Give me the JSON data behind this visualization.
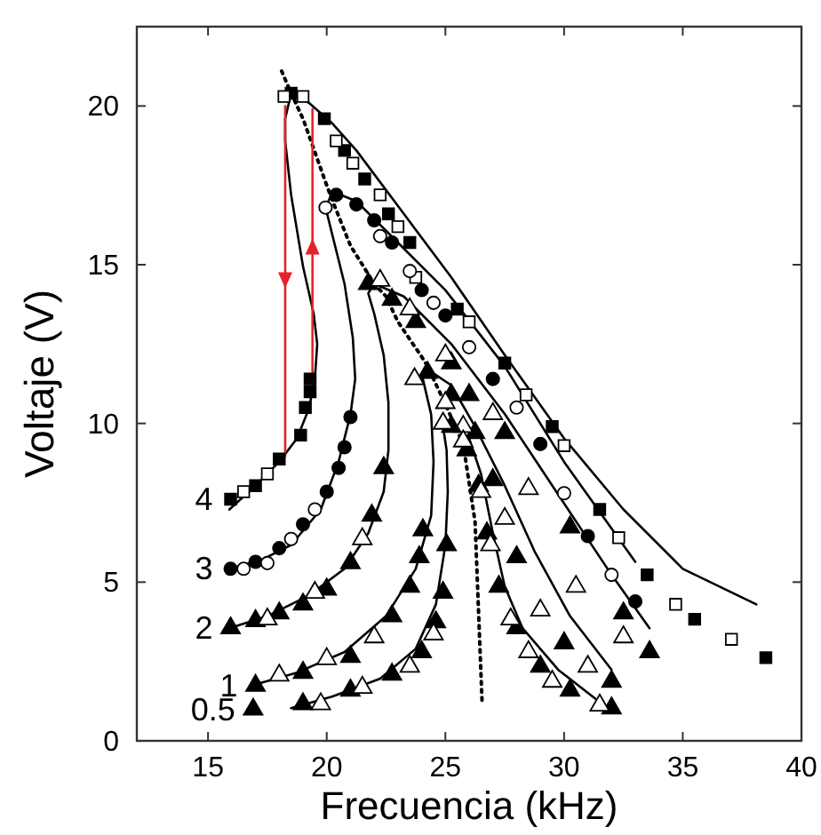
{
  "chart_data": {
    "type": "scatter",
    "xlabel": "Frecuencia (kHz)",
    "ylabel": "Voltaje (V)",
    "xlim": [
      12,
      40
    ],
    "ylim": [
      0,
      22.5
    ],
    "xticks": [
      15,
      20,
      25,
      30,
      35,
      40
    ],
    "yticks": [
      0,
      5,
      10,
      15,
      20
    ],
    "grid": false,
    "series": [
      {
        "type": "line",
        "color": "#000000",
        "marker": "none",
        "line_style": "solid",
        "x": [
          15.9,
          17,
          18,
          18.75,
          19.25,
          19.5,
          19.6,
          19.45,
          19,
          18.5,
          18.25,
          18.25,
          18.5,
          19.25,
          20.25,
          21.25,
          23.25,
          25.25,
          27.5,
          30,
          32.5,
          35,
          38.1
        ],
        "values": [
          7.29,
          8.04,
          8.79,
          9.53,
          10.47,
          11.4,
          12.5,
          13.46,
          14.95,
          17.2,
          18.9,
          19.6,
          20.4,
          20.1,
          19.44,
          18.6,
          16.6,
          14.6,
          12.15,
          9.53,
          7.29,
          5.42,
          4.3
        ]
      },
      {
        "type": "line",
        "color": "#000000",
        "marker": "none",
        "line_style": "solid",
        "x": [
          15.9,
          17.25,
          18.5,
          19.75,
          20.5,
          21,
          21.2,
          21.1,
          20.75,
          20.25,
          19.95,
          20.25,
          21.25,
          22.5,
          25,
          27.5,
          30,
          33
        ],
        "values": [
          5.42,
          5.7,
          6.17,
          7.29,
          8.79,
          10.28,
          11.4,
          12.7,
          14.4,
          15.9,
          16.8,
          17.3,
          17,
          16.07,
          14.2,
          11.8,
          8.79,
          5.64
        ]
      },
      {
        "type": "line",
        "color": "#000000",
        "marker": "none",
        "line_style": "solid",
        "x": [
          15.9,
          17.5,
          19.25,
          20.75,
          21.75,
          22.4,
          22.6,
          22.6,
          22.4,
          22,
          21.75,
          22,
          23.25,
          25.25,
          27.5,
          30,
          32,
          33.6
        ],
        "values": [
          3.55,
          3.93,
          4.58,
          5.42,
          6.54,
          7.85,
          9.16,
          10.65,
          12.15,
          13.46,
          14.1,
          14.4,
          14,
          12.5,
          10.3,
          7.48,
          5.23,
          3.55
        ]
      },
      {
        "type": "line",
        "color": "#000000",
        "marker": "none",
        "line_style": "solid",
        "x": [
          17,
          18.75,
          20.75,
          22.5,
          23.75,
          24.4,
          24.5,
          24.4,
          24.05,
          24.25,
          25.25,
          26.25,
          27.5,
          28.75,
          30.25,
          32
        ],
        "values": [
          1.78,
          2.15,
          2.8,
          3.93,
          5.42,
          7.1,
          8.79,
          10.28,
          11.4,
          11.7,
          11.2,
          9.9,
          8.04,
          5.98,
          3.93,
          2.24
        ]
      },
      {
        "type": "line",
        "color": "#000000",
        "marker": "none",
        "line_style": "solid",
        "x": [
          18.5,
          20.25,
          22.25,
          23.75,
          24.6,
          25,
          25.1,
          25.05,
          24.9,
          25.1,
          26,
          26.5,
          27,
          27.5,
          28.25,
          29.75,
          32
        ],
        "values": [
          1.03,
          1.4,
          1.96,
          2.9,
          4.3,
          6.17,
          7.85,
          9.16,
          9.9,
          10.1,
          9.53,
          8.41,
          6.54,
          4.86,
          3.55,
          2.24,
          0.93
        ]
      },
      {
        "type": "line",
        "color": "#000000",
        "marker": "none",
        "line_style": "dotted",
        "x": [
          18.1,
          18.5,
          19,
          20,
          20.25,
          21,
          22,
          22.5,
          23,
          24,
          24.25,
          25,
          25.75,
          26.25,
          26.4,
          26.55
        ],
        "values": [
          21.1,
          20.4,
          19.6,
          17.5,
          17,
          15.6,
          14.4,
          14,
          13.2,
          12.1,
          11.8,
          10.6,
          9.35,
          6.9,
          4,
          1.12
        ]
      },
      {
        "type": "line",
        "color": "#e8202a",
        "marker": "none",
        "line_style": "solid",
        "x": [
          18.25,
          18.25
        ],
        "values": [
          20,
          8.97
        ]
      },
      {
        "type": "line",
        "color": "#e8202a",
        "marker": "none",
        "line_style": "solid",
        "x": [
          19.4,
          19.4
        ],
        "values": [
          11.3,
          19.9
        ]
      },
      {
        "name": "4",
        "color": "#000000",
        "marker": "square",
        "x": [
          15.95,
          17,
          18,
          18.9,
          19.1,
          19.3,
          19.3,
          18.5,
          19.9,
          20.75,
          21.6,
          22.6,
          23.5,
          25.5,
          27.5,
          29.5,
          31.5,
          33.5,
          35.5,
          38.5
        ],
        "values": [
          7.61,
          8.04,
          8.88,
          9.63,
          10.5,
          11,
          11.4,
          20.4,
          19.6,
          18.6,
          17.7,
          16.6,
          15.7,
          13.6,
          11.9,
          9.9,
          7.29,
          5.23,
          3.83,
          2.62
        ]
      },
      {
        "color": "#ffffff",
        "marker": "square",
        "x": [
          16.5,
          17.5,
          18.2,
          19,
          20.4,
          21.1,
          22.25,
          23,
          23.75,
          26,
          28.4,
          30,
          32.3,
          34.7,
          37.05
        ],
        "values": [
          7.85,
          8.41,
          20.3,
          20.3,
          18.9,
          18.2,
          17.2,
          16.2,
          14.6,
          13.2,
          10.9,
          9.3,
          6.4,
          4.3,
          3.2
        ]
      },
      {
        "name": "3",
        "color": "#000000",
        "marker": "circle",
        "x": [
          15.95,
          17,
          18,
          19,
          20,
          20.5,
          20.75,
          21,
          20.4,
          21.25,
          22,
          22.75,
          24,
          25,
          27,
          29,
          31,
          33
        ],
        "values": [
          5.42,
          5.64,
          6.07,
          6.82,
          7.85,
          8.6,
          9.25,
          10.2,
          17.2,
          16.9,
          16.4,
          15.7,
          14.2,
          13.4,
          11.4,
          9.35,
          6.45,
          4.39
        ]
      },
      {
        "color": "#ffffff",
        "marker": "circle",
        "x": [
          16.5,
          17.5,
          18.5,
          19.5,
          19.95,
          22.25,
          23.5,
          24.5,
          26,
          28,
          30,
          32
        ],
        "values": [
          5.42,
          5.6,
          6.36,
          7.29,
          16.8,
          15.9,
          14.8,
          13.8,
          12.4,
          10.5,
          7.8,
          5.23
        ]
      },
      {
        "name": "2",
        "color": "#000000",
        "marker": "triangle",
        "x": [
          15.95,
          17,
          18,
          19,
          20,
          21,
          21.9,
          22.4,
          21.75,
          22.75,
          23.75,
          25.25,
          26,
          27.5,
          30.25,
          32.5,
          33.6
        ],
        "values": [
          3.55,
          3.78,
          4.02,
          4.3,
          4.77,
          5.6,
          7.1,
          8.6,
          14.4,
          13.9,
          13.2,
          11.9,
          10.9,
          9.7,
          6.73,
          4.02,
          2.8
        ]
      },
      {
        "color": "#ffffff",
        "marker": "triangle",
        "x": [
          17.5,
          19.5,
          21.5,
          22.25,
          23.5,
          25,
          27,
          28.5,
          30.5,
          32.5
        ],
        "values": [
          3.83,
          4.67,
          6.36,
          14.5,
          13.6,
          12.15,
          10.3,
          7.94,
          4.86,
          3.27
        ]
      },
      {
        "name": "1",
        "color": "#000000",
        "marker": "triangle",
        "x": [
          17,
          19,
          21,
          22.75,
          23.5,
          23.9,
          24.05,
          24.25,
          25.25,
          26.25,
          27,
          28,
          30,
          32
        ],
        "values": [
          1.74,
          2.15,
          2.65,
          3.93,
          4.86,
          5.79,
          6.64,
          11.6,
          10.9,
          9.7,
          8.22,
          5.79,
          3.08,
          1.87
        ]
      },
      {
        "color": "#ffffff",
        "marker": "triangle",
        "x": [
          18,
          20,
          22,
          23.7,
          25,
          25.75,
          27.5,
          29,
          31
        ],
        "values": [
          2.06,
          2.58,
          3.27,
          11.4,
          10.65,
          9.9,
          7,
          4.11,
          2.34
        ]
      },
      {
        "name": "0.5",
        "color": "#000000",
        "marker": "triangle",
        "x": [
          16.9,
          19,
          21,
          22.75,
          24,
          24.6,
          24.9,
          25.05,
          25.25,
          25.9,
          26.4,
          26.75,
          27.25,
          28,
          29,
          30.25,
          32
        ],
        "values": [
          0.99,
          1.16,
          1.59,
          2.09,
          2.8,
          3.74,
          4.67,
          6.17,
          9.9,
          9.16,
          8.04,
          6.54,
          4.86,
          3.55,
          2.34,
          1.59,
          1.03
        ]
      },
      {
        "color": "#ffffff",
        "marker": "triangle",
        "x": [
          19.75,
          21.5,
          23.5,
          24.5,
          24.9,
          25.75,
          26.5,
          26.9,
          27.75,
          28.5,
          29.5,
          31.5
        ],
        "values": [
          1.16,
          1.68,
          2.34,
          3.36,
          10,
          9.44,
          7.85,
          6.17,
          3.83,
          2.8,
          1.87,
          1.12
        ]
      }
    ]
  }
}
